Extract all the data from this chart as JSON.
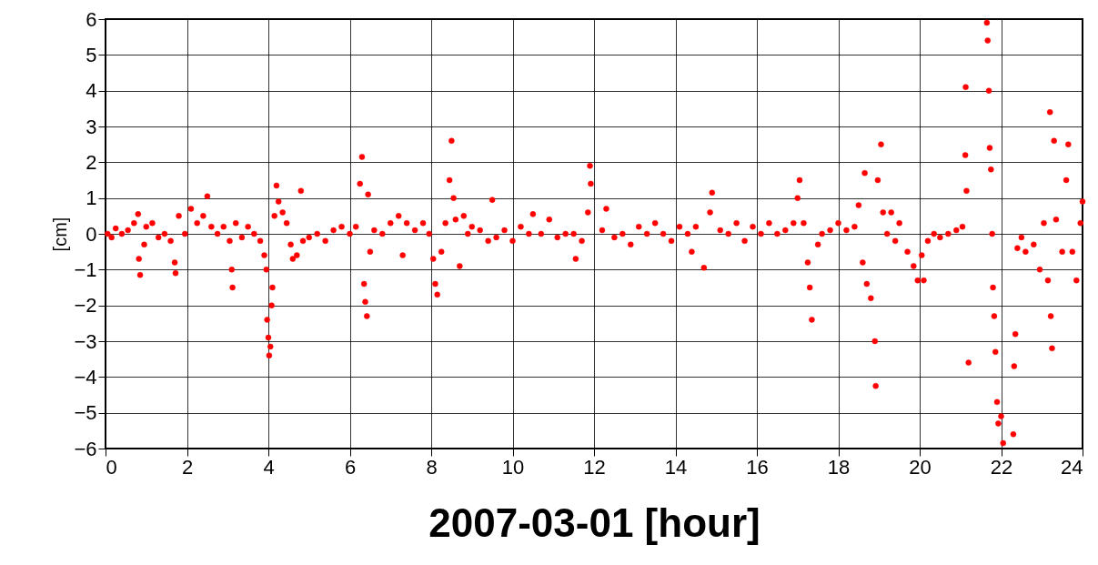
{
  "chart_data": {
    "type": "scatter",
    "xlabel": "2007-03-01 [hour]",
    "ylabel": "[cm]",
    "xlim": [
      0,
      24
    ],
    "xticks": [
      0,
      2,
      4,
      6,
      8,
      10,
      12,
      14,
      16,
      18,
      20,
      22,
      24
    ],
    "ylim": [
      -6,
      6
    ],
    "yticks": [
      -6,
      -5,
      -4,
      -3,
      -2,
      -1,
      0,
      1,
      2,
      3,
      4,
      5,
      6
    ],
    "grid": true,
    "marker": "circle",
    "series": [
      {
        "color": "#ff0000",
        "x": [
          0.05,
          0.15,
          0.25,
          0.4,
          0.55,
          0.7,
          0.8,
          0.82,
          0.85,
          0.95,
          1.0,
          1.15,
          1.3,
          1.45,
          1.6,
          1.7,
          1.72,
          1.8,
          1.95,
          2.1,
          2.25,
          2.4,
          2.5,
          2.6,
          2.75,
          2.9,
          3.05,
          3.1,
          3.12,
          3.2,
          3.35,
          3.5,
          3.65,
          3.8,
          3.9,
          3.95,
          3.97,
          4.0,
          4.02,
          4.05,
          4.08,
          4.1,
          4.15,
          4.2,
          4.25,
          4.35,
          4.45,
          4.55,
          4.6,
          4.7,
          4.8,
          4.85,
          5.0,
          5.2,
          5.4,
          5.6,
          5.8,
          6.0,
          6.15,
          6.25,
          6.3,
          6.35,
          6.38,
          6.42,
          6.45,
          6.5,
          6.6,
          6.8,
          7.0,
          7.2,
          7.3,
          7.4,
          7.6,
          7.8,
          7.95,
          8.05,
          8.1,
          8.15,
          8.25,
          8.35,
          8.45,
          8.5,
          8.55,
          8.6,
          8.7,
          8.8,
          8.9,
          9.0,
          9.2,
          9.4,
          9.5,
          9.6,
          9.8,
          10.0,
          10.2,
          10.4,
          10.5,
          10.7,
          10.9,
          11.1,
          11.3,
          11.5,
          11.55,
          11.7,
          11.85,
          11.9,
          11.92,
          12.2,
          12.3,
          12.5,
          12.7,
          12.9,
          13.1,
          13.3,
          13.5,
          13.7,
          13.9,
          14.1,
          14.3,
          14.4,
          14.5,
          14.7,
          14.85,
          14.9,
          15.1,
          15.3,
          15.5,
          15.7,
          15.9,
          16.1,
          16.3,
          16.5,
          16.7,
          16.9,
          17.0,
          17.05,
          17.15,
          17.25,
          17.3,
          17.35,
          17.5,
          17.6,
          17.8,
          18.0,
          18.2,
          18.4,
          18.5,
          18.6,
          18.65,
          18.7,
          18.8,
          18.9,
          18.92,
          18.97,
          19.05,
          19.1,
          19.2,
          19.3,
          19.4,
          19.5,
          19.7,
          19.85,
          19.95,
          20.05,
          20.1,
          20.2,
          20.35,
          20.5,
          20.7,
          20.9,
          21.05,
          21.12,
          21.13,
          21.15,
          21.2,
          21.65,
          21.67,
          21.7,
          21.72,
          21.75,
          21.78,
          21.8,
          21.83,
          21.86,
          21.9,
          21.93,
          22.0,
          22.05,
          22.3,
          22.32,
          22.35,
          22.4,
          22.5,
          22.6,
          22.8,
          22.95,
          23.05,
          23.15,
          23.2,
          23.22,
          23.25,
          23.3,
          23.35,
          23.5,
          23.6,
          23.65,
          23.75,
          23.85,
          23.95,
          24.0
        ],
        "values": [
          0.0,
          -0.1,
          0.15,
          0.0,
          0.1,
          0.3,
          0.55,
          -0.7,
          -1.15,
          -0.3,
          0.2,
          0.3,
          -0.1,
          0.0,
          -0.2,
          -0.8,
          -1.1,
          0.5,
          0.0,
          0.7,
          0.3,
          0.5,
          1.05,
          0.2,
          0.0,
          0.2,
          -0.2,
          -1.0,
          -1.5,
          0.3,
          -0.1,
          0.2,
          0.0,
          -0.2,
          -0.6,
          -1.0,
          -2.4,
          -2.9,
          -3.4,
          -3.15,
          -2.0,
          -1.5,
          0.5,
          1.35,
          0.9,
          0.6,
          0.3,
          -0.3,
          -0.7,
          -0.6,
          1.2,
          -0.2,
          -0.1,
          0.0,
          -0.2,
          0.1,
          0.2,
          0.0,
          0.2,
          1.4,
          2.15,
          -1.4,
          -1.9,
          -2.3,
          1.1,
          -0.5,
          0.1,
          0.0,
          0.3,
          0.5,
          -0.6,
          0.3,
          0.1,
          0.3,
          0.0,
          -0.7,
          -1.4,
          -1.7,
          -0.5,
          0.3,
          1.5,
          2.6,
          1.0,
          0.4,
          -0.9,
          0.5,
          0.0,
          0.2,
          0.1,
          -0.2,
          0.95,
          -0.1,
          0.1,
          -0.2,
          0.2,
          0.0,
          0.55,
          0.0,
          0.4,
          -0.1,
          0.0,
          0.0,
          -0.7,
          -0.2,
          0.6,
          1.9,
          1.4,
          0.1,
          0.7,
          -0.1,
          0.0,
          -0.3,
          0.2,
          0.0,
          0.3,
          0.0,
          -0.2,
          0.2,
          0.0,
          -0.5,
          0.2,
          -0.95,
          0.6,
          1.15,
          0.1,
          0.0,
          0.3,
          -0.2,
          0.2,
          0.0,
          0.3,
          0.0,
          0.1,
          0.3,
          1.0,
          1.5,
          0.3,
          -0.8,
          -1.5,
          -2.4,
          -0.3,
          0.0,
          0.1,
          0.3,
          0.1,
          0.2,
          0.8,
          -0.8,
          1.7,
          -1.4,
          -1.8,
          -3.0,
          -4.25,
          1.5,
          2.5,
          0.6,
          0.0,
          0.6,
          -0.2,
          0.3,
          -0.5,
          -0.9,
          -1.3,
          -0.6,
          -1.3,
          -0.2,
          0.0,
          -0.1,
          0.0,
          0.1,
          0.2,
          2.2,
          4.1,
          1.2,
          -3.6,
          5.9,
          5.4,
          4.0,
          2.4,
          1.8,
          0.0,
          -1.5,
          -2.3,
          -3.3,
          -4.7,
          -5.3,
          -5.1,
          -5.85,
          -5.6,
          -3.7,
          -2.8,
          -0.4,
          -0.1,
          -0.5,
          -0.3,
          -1.0,
          0.3,
          -1.3,
          3.4,
          -2.3,
          -3.2,
          2.6,
          0.4,
          -0.5,
          1.5,
          2.5,
          -0.5,
          -1.3,
          0.3,
          0.9
        ]
      }
    ]
  }
}
